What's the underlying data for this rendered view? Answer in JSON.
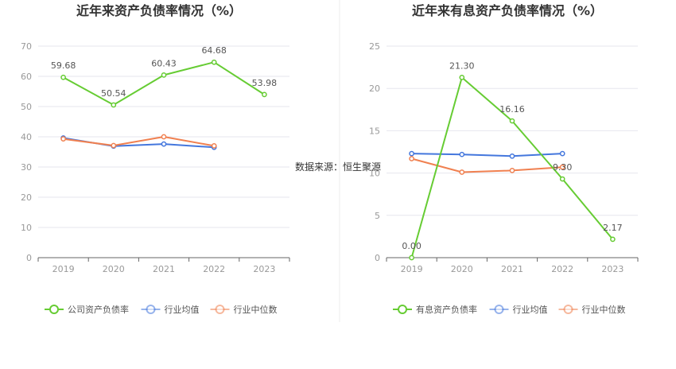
{
  "source_note": "数据来源：恒生聚源",
  "chart_data": [
    {
      "type": "line",
      "title": "近年来资产负债率情况（%）",
      "categories": [
        "2019",
        "2020",
        "2021",
        "2022",
        "2023"
      ],
      "ylim": [
        0,
        70
      ],
      "yticks": [
        0,
        10,
        20,
        30,
        40,
        50,
        60,
        70
      ],
      "grid": true,
      "legend_position": "bottom",
      "series": [
        {
          "name": "公司资产负债率",
          "color": "#66cc33",
          "values": [
            59.68,
            50.54,
            60.43,
            64.68,
            53.98
          ],
          "labels": [
            "59.68",
            "50.54",
            "60.43",
            "64.68",
            "53.98"
          ]
        },
        {
          "name": "行业均值",
          "color": "#4477dd",
          "values": [
            39.6,
            36.9,
            37.6,
            36.5,
            null
          ]
        },
        {
          "name": "行业中位数",
          "color": "#f08050",
          "values": [
            39.3,
            37.1,
            40.0,
            37.0,
            null
          ]
        }
      ]
    },
    {
      "type": "line",
      "title": "近年来有息资产负债率情况（%）",
      "categories": [
        "2019",
        "2020",
        "2021",
        "2022",
        "2023"
      ],
      "ylim": [
        0,
        25
      ],
      "yticks": [
        0,
        5,
        10,
        15,
        20,
        25
      ],
      "grid": true,
      "legend_position": "bottom",
      "series": [
        {
          "name": "有息资产负债率",
          "color": "#66cc33",
          "values": [
            0.0,
            21.3,
            16.16,
            9.3,
            2.17
          ],
          "labels": [
            "0.00",
            "21.30",
            "16.16",
            "9.30",
            "2.17"
          ]
        },
        {
          "name": "行业均值",
          "color": "#4477dd",
          "values": [
            12.3,
            12.2,
            12.0,
            12.3,
            null
          ]
        },
        {
          "name": "行业中位数",
          "color": "#f08050",
          "values": [
            11.7,
            10.1,
            10.3,
            10.7,
            null
          ]
        }
      ]
    }
  ]
}
